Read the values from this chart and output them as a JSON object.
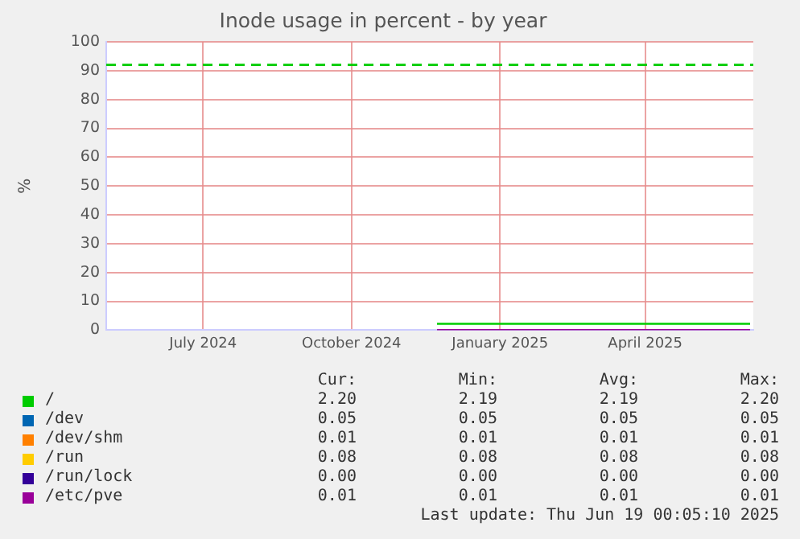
{
  "chart_data": {
    "type": "line",
    "title": "Inode usage in percent - by year",
    "ylabel": "%",
    "xlim": [
      "2024-05-16",
      "2025-06-21"
    ],
    "xticks": [
      {
        "value": "2024-07-15",
        "label": "July 2024"
      },
      {
        "value": "2024-10-15",
        "label": "October 2024"
      },
      {
        "value": "2025-01-15",
        "label": "January 2025"
      },
      {
        "value": "2025-04-15",
        "label": "April 2025"
      }
    ],
    "ylim": [
      0,
      100
    ],
    "yticks": [
      0,
      10,
      20,
      30,
      40,
      50,
      60,
      70,
      80,
      90,
      100
    ],
    "grid": true,
    "legend": "bottom",
    "marker": "none",
    "series": [
      {
        "name": "/",
        "color": "#00cc00",
        "x": [
          "2024-12-07",
          "2025-06-19"
        ],
        "values": [
          2.2,
          2.2
        ]
      },
      {
        "name": "/dev",
        "color": "#0066b3",
        "values": [
          null,
          null
        ]
      },
      {
        "name": "/dev/shm",
        "color": "#ff8000",
        "values": [
          null,
          null
        ]
      },
      {
        "name": "/run",
        "color": "#ffcc00",
        "values": [
          null,
          null
        ]
      },
      {
        "name": "/run/lock",
        "color": "#330099",
        "values": [
          null,
          null
        ]
      },
      {
        "name": "/etc/pve",
        "color": "#990099",
        "x": [
          "2024-12-07",
          "2025-06-19"
        ],
        "values": [
          0.01,
          0.01
        ]
      }
    ],
    "ref_lines": [
      {
        "axis": "y",
        "value": 92,
        "color": "#00cc00",
        "line_style": "dashed"
      }
    ],
    "annotations": [
      "Cur:",
      "Min:",
      "Avg:",
      "Max:",
      "2.20",
      "2.19",
      "2.19",
      "2.20",
      "0.05",
      "0.05",
      "0.05",
      "0.05",
      "0.01",
      "0.01",
      "0.01",
      "0.01",
      "0.08",
      "0.08",
      "0.08",
      "0.08",
      "0.00",
      "0.00",
      "0.00",
      "0.00",
      "0.01",
      "0.01",
      "0.01",
      "0.01",
      "Last update: Thu Jun 19 00:05:10 2025"
    ]
  }
}
